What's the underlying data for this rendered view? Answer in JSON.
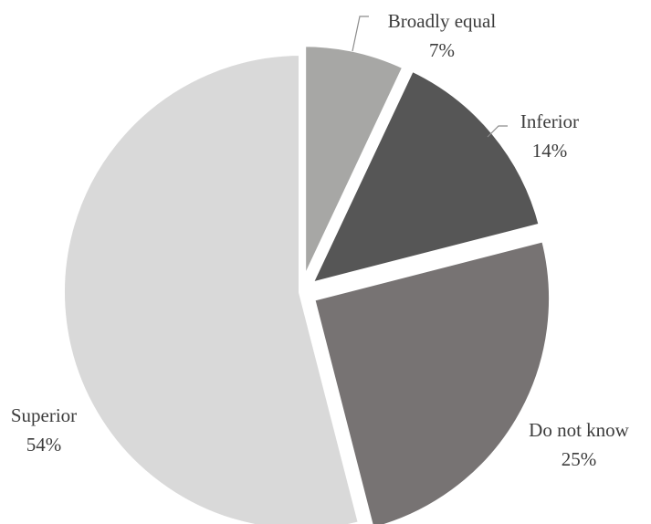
{
  "chart_data": {
    "type": "pie",
    "title": "",
    "legend": "none",
    "slices": [
      {
        "label": "Broadly equal",
        "value": 7,
        "display": "7%",
        "color": "#a7a7a5"
      },
      {
        "label": "Inferior",
        "value": 14,
        "display": "14%",
        "color": "#565656"
      },
      {
        "label": "Do not know",
        "value": 25,
        "display": "25%",
        "color": "#777373"
      },
      {
        "label": "Superior",
        "value": 54,
        "display": "54%",
        "color": "#d9d9d9"
      }
    ]
  }
}
